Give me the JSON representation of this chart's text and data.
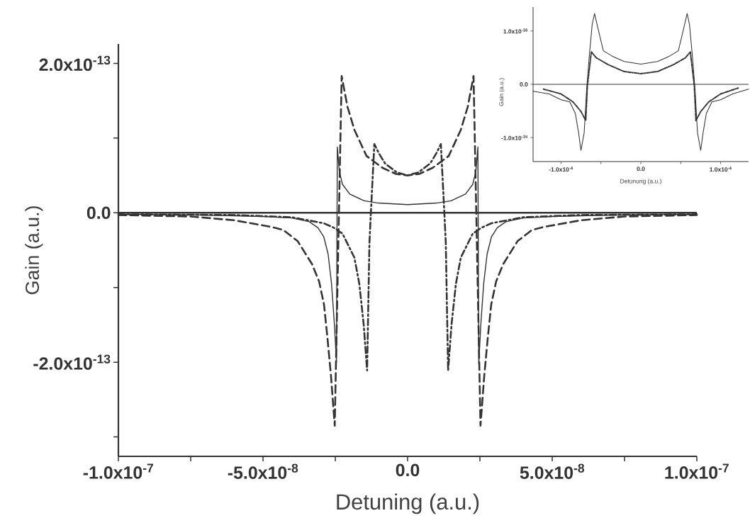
{
  "chart_data": [
    {
      "type": "line",
      "xlabel": "Detuning (a.u.)",
      "ylabel": "Gain (a.u.)",
      "xlim": [
        -1e-07,
        1e-07
      ],
      "ylim": [
        -3.26e-13,
        2.26e-13
      ],
      "xticks": [
        {
          "value": -1e-07,
          "label": "-1.0x10$^{-7}$"
        },
        {
          "value": -7.5e-08,
          "label": null
        },
        {
          "value": -5e-08,
          "label": "-5.0x10$^{-8}$"
        },
        {
          "value": -2.5e-08,
          "label": null
        },
        {
          "value": 0,
          "label": "0.0"
        },
        {
          "value": 2.5e-08,
          "label": null
        },
        {
          "value": 5e-08,
          "label": "5.0x10$^{-8}$"
        },
        {
          "value": 7.5e-08,
          "label": null
        },
        {
          "value": 1e-07,
          "label": "1.0x10$^{-7}$"
        }
      ],
      "yticks": [
        {
          "value": -3e-13,
          "label": null
        },
        {
          "value": -2e-13,
          "label": "-2.0x10$^{-13}$"
        },
        {
          "value": -1e-13,
          "label": null
        },
        {
          "value": 0,
          "label": "0.0"
        },
        {
          "value": 1e-13,
          "label": null
        },
        {
          "value": 2e-13,
          "label": "2.0x10$^{-13}$"
        }
      ],
      "ref_lines": [
        {
          "axis": "y",
          "value": 0,
          "color": "#333333"
        }
      ],
      "series": [
        {
          "color": "#333333",
          "line_style": "solid",
          "x": [
            -1e-07,
            -7e-08,
            -5e-08,
            -4e-08,
            -3.4e-08,
            -3.1e-08,
            -2.9e-08,
            -2.75e-08,
            -2.63e-08,
            -2.53e-08,
            -2.46e-08,
            -2.43e-08,
            -2.36e-08,
            -2.25e-08,
            -2e-08,
            -1.5e-08,
            -1e-08,
            0,
            1e-08,
            1.5e-08,
            2e-08,
            2.25e-08,
            2.36e-08,
            2.43e-08,
            2.46e-08,
            2.53e-08,
            2.63e-08,
            2.75e-08,
            2.9e-08,
            3.1e-08,
            3.4e-08,
            4e-08,
            5e-08,
            7e-08,
            1e-07
          ],
          "values": [
            -2e-15,
            -3e-15,
            -5e-15,
            -7e-15,
            -1.2e-14,
            -2e-14,
            -3.2e-14,
            -5.5e-14,
            -9.5e-14,
            -1.5e-13,
            -2e-13,
            8.8e-14,
            5.5e-14,
            3.8e-14,
            2.5e-14,
            1.6e-14,
            1.3e-14,
            1.1e-14,
            1.3e-14,
            1.6e-14,
            2.5e-14,
            3.8e-14,
            5.5e-14,
            8.8e-14,
            -2.02e-13,
            -1.5e-13,
            -9.5e-14,
            -5.5e-14,
            -3.2e-14,
            -2e-14,
            -1.2e-14,
            -7e-15,
            -5e-15,
            -3e-15,
            -2e-15
          ]
        },
        {
          "color": "#333333",
          "line_style": "dashed",
          "x": [
            -1e-07,
            -7.5e-08,
            -6e-08,
            -4.7e-08,
            -4.3e-08,
            -3.8e-08,
            -3.3e-08,
            -3.06e-08,
            -2.89e-08,
            -2.77e-08,
            -2.65e-08,
            -2.52e-08,
            -2.28e-08,
            -2.08e-08,
            -1.84e-08,
            -1.42e-08,
            -8.6e-09,
            -4e-09,
            0,
            4e-09,
            8.6e-09,
            1.42e-08,
            1.84e-08,
            2.08e-08,
            2.28e-08,
            2.52e-08,
            2.65e-08,
            2.77e-08,
            2.89e-08,
            3.06e-08,
            3.3e-08,
            3.8e-08,
            4.3e-08,
            4.7e-08,
            6e-08,
            7.5e-08,
            1e-07
          ],
          "values": [
            -3e-15,
            -5e-15,
            -1e-14,
            -1.9e-14,
            -2.3e-14,
            -3.8e-14,
            -6.9e-14,
            -9.2e-14,
            -1.23e-13,
            -1.68e-13,
            -2.18e-13,
            -2.85e-13,
            1.83e-13,
            1.42e-13,
            1.11e-13,
            7.6e-14,
            6e-14,
            5.2e-14,
            5e-14,
            5.2e-14,
            6e-14,
            7.6e-14,
            1.11e-13,
            1.42e-13,
            1.83e-13,
            -2.85e-13,
            -2.18e-13,
            -1.68e-13,
            -1.23e-13,
            -9.2e-14,
            -6.9e-14,
            -3.8e-14,
            -2.3e-14,
            -1.9e-14,
            -1e-14,
            -5e-15,
            -3e-15
          ]
        },
        {
          "color": "#333333",
          "line_style": "dashdot",
          "x": [
            -1e-07,
            -6e-08,
            -4e-08,
            -2.9e-08,
            -2.55e-08,
            -2.25e-08,
            -1.84e-08,
            -1.67e-08,
            -1.52e-08,
            -1.4e-08,
            -1.32e-08,
            -1.27e-08,
            -1.15e-08,
            -1e-08,
            -7.8e-09,
            -3.7e-09,
            0,
            3.7e-09,
            7.8e-09,
            1e-08,
            1.15e-08,
            1.27e-08,
            1.32e-08,
            1.4e-08,
            1.52e-08,
            1.67e-08,
            1.84e-08,
            2.25e-08,
            2.55e-08,
            2.9e-08,
            4e-08,
            6e-08,
            1e-07
          ],
          "values": [
            -2e-15,
            -3e-15,
            -6e-15,
            -1.4e-14,
            -2e-14,
            -2.8e-14,
            -6e-14,
            -9.5e-14,
            -1.49e-13,
            -2.11e-13,
            -4e-14,
            0,
            9.2e-14,
            8e-14,
            6.6e-14,
            5.4e-14,
            5e-14,
            5.4e-14,
            6.6e-14,
            8e-14,
            9.2e-14,
            0,
            -4e-14,
            -2.11e-13,
            -1.49e-13,
            -9.5e-14,
            -6e-14,
            -2.8e-14,
            -2e-14,
            -1.4e-14,
            -6e-15,
            -3e-15,
            -2e-15
          ]
        }
      ]
    },
    {
      "type": "line",
      "xlabel": "Detunung (a.u.)",
      "ylabel": "Gain (a.u.)",
      "xlim": [
        -0.000135,
        0.000135
      ],
      "ylim": [
        -1.45e-16,
        1.45e-16
      ],
      "xticks": [
        {
          "value": -0.0001,
          "label": "-1.0x10$^{-4}$"
        },
        {
          "value": -5e-05,
          "label": null
        },
        {
          "value": 0,
          "label": "0.0"
        },
        {
          "value": 5e-05,
          "label": null
        },
        {
          "value": 0.0001,
          "label": "1.0x10$^{-4}$"
        }
      ],
      "yticks": [
        {
          "value": -1e-16,
          "label": "-1.0x10$^{-16}$"
        },
        {
          "value": 0,
          "label": "0.0"
        },
        {
          "value": 1e-16,
          "label": "1.0x10$^{-16}$"
        }
      ],
      "ref_lines": [
        {
          "axis": "y",
          "value": 0,
          "color": "#333333"
        }
      ],
      "series": [
        {
          "color": "#333333",
          "line_style": "solid",
          "x": [
            -0.000135,
            -0.000115,
            -0.0001,
            -8.9e-05,
            -8.2e-05,
            -7.8e-05,
            -7.5e-05,
            -7.1e-05,
            -6.8e-05,
            -6.5e-05,
            -6.1e-05,
            -5.8e-05,
            -5.4e-05,
            -4.7e-05,
            -3.6e-05,
            -2.1e-05,
            0,
            2.1e-05,
            3.6e-05,
            4.7e-05,
            5.4e-05,
            5.8e-05,
            6.1e-05,
            6.5e-05,
            6.8e-05,
            7.1e-05,
            7.5e-05,
            7.8e-05,
            8.2e-05,
            8.9e-05,
            0.0001,
            0.000115,
            0.000135
          ],
          "values": [
            -1.3e-17,
            -1.8e-17,
            -2.9e-17,
            -3.3e-17,
            -5.5e-17,
            -9.1e-17,
            -1.24e-16,
            -9.1e-17,
            -1.2e-17,
            4.6e-17,
            1.12e-16,
            1.33e-16,
            1.07e-16,
            6.3e-17,
            5.3e-17,
            4.3e-17,
            3.8e-17,
            4.3e-17,
            5.3e-17,
            6.3e-17,
            1.07e-16,
            1.33e-16,
            1.12e-16,
            4.6e-17,
            -1.2e-17,
            -9.1e-17,
            -1.24e-16,
            -9.1e-17,
            -5.5e-17,
            -3.3e-17,
            -2.9e-17,
            -1.8e-17,
            -9e-18
          ]
        },
        {
          "color": "#333333",
          "line_style": "dashdot",
          "x": [
            -0.000122,
            -0.0001,
            -8.5e-05,
            -7.5e-05,
            -6.9e-05,
            -6.7e-05,
            -6.2e-05,
            -5.6e-05,
            -4.1e-05,
            -2.1e-05,
            0,
            2.1e-05,
            4.1e-05,
            5.6e-05,
            6.2e-05,
            6.7e-05,
            6.9e-05,
            7.5e-05,
            8.5e-05,
            0.0001,
            0.000122
          ],
          "values": [
            -9e-18,
            -1.8e-17,
            -3.3e-17,
            -5.1e-17,
            -6.8e-17,
            -3e-18,
            6.1e-17,
            5e-17,
            3.7e-17,
            2.4e-17,
            2e-17,
            2.4e-17,
            3.7e-17,
            5e-17,
            6.1e-17,
            -3e-18,
            -6.8e-17,
            -5.1e-17,
            -3.3e-17,
            -1.8e-17,
            -7e-18
          ]
        }
      ]
    }
  ]
}
